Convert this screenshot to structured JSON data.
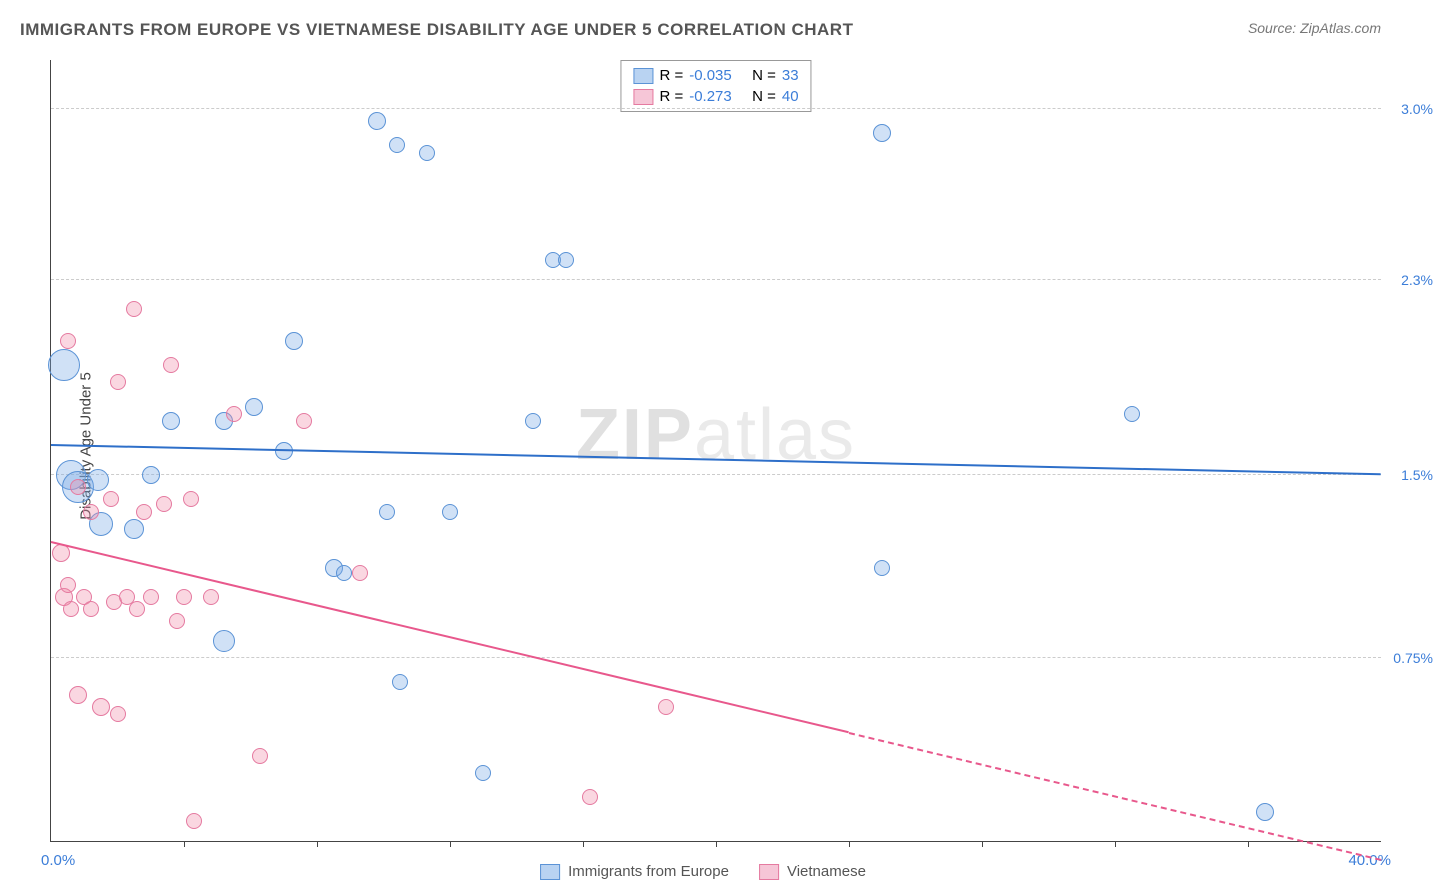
{
  "title": "IMMIGRANTS FROM EUROPE VS VIETNAMESE DISABILITY AGE UNDER 5 CORRELATION CHART",
  "source": "Source: ZipAtlas.com",
  "ylabel": "Disability Age Under 5",
  "watermark_a": "ZIP",
  "watermark_b": "atlas",
  "xaxis": {
    "min": 0.0,
    "max": 40.0,
    "min_label": "0.0%",
    "max_label": "40.0%",
    "tick_step_pct": 10,
    "color": "#3b7dd8"
  },
  "yaxis": {
    "min": 0.0,
    "max": 3.2,
    "ticks": [
      0.75,
      1.5,
      2.3,
      3.0
    ],
    "tick_labels": [
      "0.75%",
      "1.5%",
      "2.3%",
      "3.0%"
    ],
    "color": "#3b7dd8"
  },
  "grid_color": "#cccccc",
  "series": [
    {
      "name": "Immigrants from Europe",
      "color_fill": "rgba(120,170,230,0.35)",
      "color_stroke": "#5b93d6",
      "line_color": "#2e6fc9",
      "swatch_fill": "#b9d3f2",
      "swatch_stroke": "#5b93d6",
      "R": "-0.035",
      "N": "33",
      "regression": {
        "x1": 0,
        "y1": 1.62,
        "x2": 40,
        "y2": 1.5,
        "dash_from_x": null
      },
      "points": [
        {
          "x": 0.4,
          "y": 1.95,
          "r": 16
        },
        {
          "x": 0.6,
          "y": 1.5,
          "r": 15
        },
        {
          "x": 0.8,
          "y": 1.45,
          "r": 16
        },
        {
          "x": 1.4,
          "y": 1.48,
          "r": 11
        },
        {
          "x": 1.5,
          "y": 1.3,
          "r": 12
        },
        {
          "x": 2.5,
          "y": 1.28,
          "r": 10
        },
        {
          "x": 3.0,
          "y": 1.5,
          "r": 9
        },
        {
          "x": 3.6,
          "y": 1.72,
          "r": 9
        },
        {
          "x": 5.2,
          "y": 1.72,
          "r": 9
        },
        {
          "x": 5.2,
          "y": 0.82,
          "r": 11
        },
        {
          "x": 6.1,
          "y": 1.78,
          "r": 9
        },
        {
          "x": 7.0,
          "y": 1.6,
          "r": 9
        },
        {
          "x": 7.3,
          "y": 2.05,
          "r": 9
        },
        {
          "x": 8.5,
          "y": 1.12,
          "r": 9
        },
        {
          "x": 8.8,
          "y": 1.1,
          "r": 8
        },
        {
          "x": 9.8,
          "y": 2.95,
          "r": 9
        },
        {
          "x": 10.1,
          "y": 1.35,
          "r": 8
        },
        {
          "x": 10.4,
          "y": 2.85,
          "r": 8
        },
        {
          "x": 10.5,
          "y": 0.65,
          "r": 8
        },
        {
          "x": 11.3,
          "y": 2.82,
          "r": 8
        },
        {
          "x": 12.0,
          "y": 1.35,
          "r": 8
        },
        {
          "x": 13.0,
          "y": 0.28,
          "r": 8
        },
        {
          "x": 14.5,
          "y": 1.72,
          "r": 8
        },
        {
          "x": 15.1,
          "y": 2.38,
          "r": 8
        },
        {
          "x": 15.5,
          "y": 2.38,
          "r": 8
        },
        {
          "x": 25.0,
          "y": 1.12,
          "r": 8
        },
        {
          "x": 25.0,
          "y": 2.9,
          "r": 9
        },
        {
          "x": 32.5,
          "y": 1.75,
          "r": 8
        },
        {
          "x": 36.5,
          "y": 0.12,
          "r": 9
        }
      ]
    },
    {
      "name": "Vietnamese",
      "color_fill": "rgba(240,140,170,0.35)",
      "color_stroke": "#e57aa0",
      "line_color": "#e8588c",
      "swatch_fill": "#f6c6d7",
      "swatch_stroke": "#e57aa0",
      "R": "-0.273",
      "N": "40",
      "regression": {
        "x1": 0,
        "y1": 1.22,
        "x2": 40,
        "y2": -0.08,
        "dash_from_x": 24
      },
      "points": [
        {
          "x": 0.3,
          "y": 1.18,
          "r": 9
        },
        {
          "x": 0.4,
          "y": 1.0,
          "r": 9
        },
        {
          "x": 0.5,
          "y": 1.05,
          "r": 8
        },
        {
          "x": 0.5,
          "y": 2.05,
          "r": 8
        },
        {
          "x": 0.6,
          "y": 0.95,
          "r": 8
        },
        {
          "x": 0.8,
          "y": 1.45,
          "r": 8
        },
        {
          "x": 0.8,
          "y": 0.6,
          "r": 9
        },
        {
          "x": 1.0,
          "y": 1.0,
          "r": 8
        },
        {
          "x": 1.2,
          "y": 1.35,
          "r": 8
        },
        {
          "x": 1.2,
          "y": 0.95,
          "r": 8
        },
        {
          "x": 1.5,
          "y": 0.55,
          "r": 9
        },
        {
          "x": 1.8,
          "y": 1.4,
          "r": 8
        },
        {
          "x": 1.9,
          "y": 0.98,
          "r": 8
        },
        {
          "x": 2.0,
          "y": 1.88,
          "r": 8
        },
        {
          "x": 2.0,
          "y": 0.52,
          "r": 8
        },
        {
          "x": 2.3,
          "y": 1.0,
          "r": 8
        },
        {
          "x": 2.5,
          "y": 2.18,
          "r": 8
        },
        {
          "x": 2.6,
          "y": 0.95,
          "r": 8
        },
        {
          "x": 2.8,
          "y": 1.35,
          "r": 8
        },
        {
          "x": 3.0,
          "y": 1.0,
          "r": 8
        },
        {
          "x": 3.4,
          "y": 1.38,
          "r": 8
        },
        {
          "x": 3.6,
          "y": 1.95,
          "r": 8
        },
        {
          "x": 3.8,
          "y": 0.9,
          "r": 8
        },
        {
          "x": 4.0,
          "y": 1.0,
          "r": 8
        },
        {
          "x": 4.2,
          "y": 1.4,
          "r": 8
        },
        {
          "x": 4.3,
          "y": 0.08,
          "r": 8
        },
        {
          "x": 4.8,
          "y": 1.0,
          "r": 8
        },
        {
          "x": 5.5,
          "y": 1.75,
          "r": 8
        },
        {
          "x": 6.3,
          "y": 0.35,
          "r": 8
        },
        {
          "x": 7.6,
          "y": 1.72,
          "r": 8
        },
        {
          "x": 9.3,
          "y": 1.1,
          "r": 8
        },
        {
          "x": 16.2,
          "y": 0.18,
          "r": 8
        },
        {
          "x": 18.5,
          "y": 0.55,
          "r": 8
        }
      ]
    }
  ],
  "stats_labels": {
    "R": "R =",
    "N": "N ="
  },
  "legend_bottom": [
    "Immigrants from Europe",
    "Vietnamese"
  ]
}
